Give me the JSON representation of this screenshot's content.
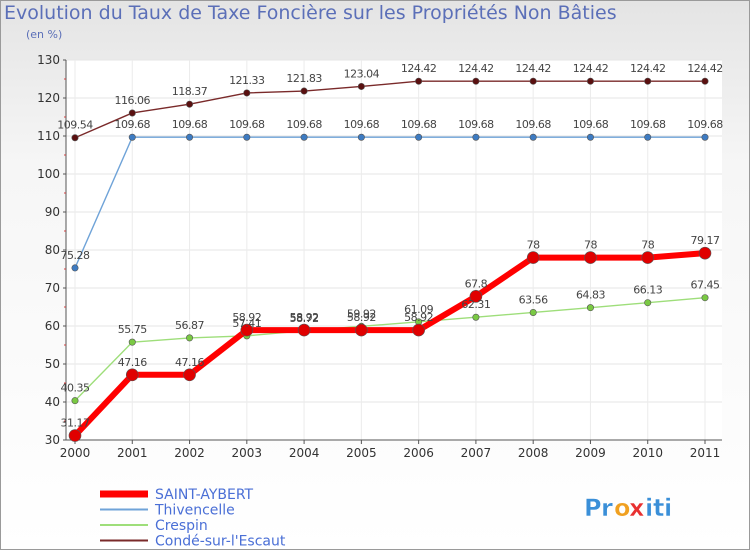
{
  "chart_data": {
    "type": "line",
    "title": "Evolution du Taux de Taxe Foncière sur les Propriétés Non Bâties",
    "ylabel": "(en %)",
    "xlabel": "",
    "ylim": [
      30,
      130
    ],
    "yticks": [
      30,
      40,
      50,
      60,
      70,
      80,
      90,
      100,
      110,
      120,
      130
    ],
    "categories": [
      "2000",
      "2001",
      "2002",
      "2003",
      "2004",
      "2005",
      "2006",
      "2007",
      "2008",
      "2009",
      "2010",
      "2011"
    ],
    "grid": true,
    "series": [
      {
        "name": "Condé-sur-l'Escaut",
        "color": "#7a2a2a",
        "marker": "#5a1010",
        "values": [
          109.54,
          116.06,
          118.37,
          121.33,
          121.83,
          123.04,
          124.42,
          124.42,
          124.42,
          124.42,
          124.42,
          124.42
        ],
        "labels": [
          "109.54",
          "116.06",
          "118.37",
          "121.33",
          "121.83",
          "123.04",
          "124.42",
          "124.42",
          "124.42",
          "124.42",
          "124.42",
          "124.42"
        ]
      },
      {
        "name": "Thivencelle",
        "color": "#6fa3d8",
        "marker": "#3d7bc2",
        "values": [
          75.28,
          109.68,
          109.68,
          109.68,
          109.68,
          109.68,
          109.68,
          109.68,
          109.68,
          109.68,
          109.68,
          109.68
        ],
        "labels": [
          "75.28",
          "109.68",
          "109.68",
          "109.68",
          "109.68",
          "109.68",
          "109.68",
          "109.68",
          "109.68",
          "109.68",
          "109.68",
          "109.68"
        ]
      },
      {
        "name": "Crespin",
        "color": "#9ede7a",
        "marker": "#7ac943",
        "values": [
          40.35,
          55.75,
          56.87,
          57.41,
          58.72,
          59.92,
          61.09,
          62.31,
          63.56,
          64.83,
          66.13,
          67.45
        ],
        "labels": [
          "40.35",
          "55.75",
          "56.87",
          "57.41",
          "58.72",
          "59.92",
          "61.09",
          "62.31",
          "63.56",
          "64.83",
          "66.13",
          "67.45"
        ]
      },
      {
        "name": "SAINT-AYBERT",
        "color": "#ff0000",
        "marker": "#e00000",
        "values": [
          31.17,
          47.16,
          47.16,
          58.92,
          58.92,
          58.92,
          58.92,
          67.8,
          78,
          78,
          78,
          79.17
        ],
        "labels": [
          "31.17",
          "47.16",
          "47.16",
          "58.92",
          "58.92",
          "58.92",
          "58.92",
          "67.8",
          "78",
          "78",
          "78",
          "79.17"
        ]
      }
    ],
    "legend_order": [
      "SAINT-AYBERT",
      "Thivencelle",
      "Crespin",
      "Condé-sur-l'Escaut"
    ],
    "legend_text_color": "#4a6fd6"
  },
  "branding": {
    "logo_letters": [
      "P",
      "r",
      "o",
      "x",
      "i",
      "t",
      "i"
    ],
    "logo_colors": [
      "#3a8fd8",
      "#3a8fd8",
      "#f0a020",
      "#e83030",
      "#3a8fd8",
      "#3a8fd8",
      "#3a8fd8"
    ]
  }
}
